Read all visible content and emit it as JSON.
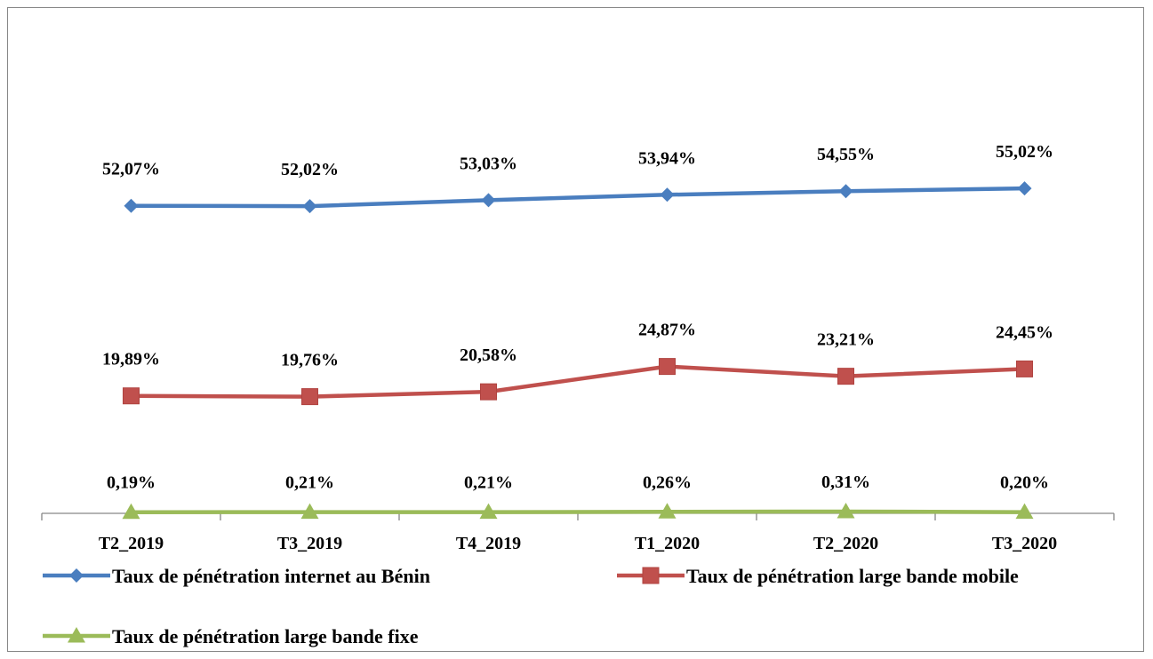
{
  "chart_data": {
    "type": "line",
    "categories": [
      "T2_2019",
      "T3_2019",
      "T4_2019",
      "T1_2020",
      "T2_2020",
      "T3_2020"
    ],
    "series": [
      {
        "name": "Taux de pénétration internet au Bénin",
        "values": [
          52.07,
          52.02,
          53.03,
          53.94,
          54.55,
          55.02
        ],
        "labels": [
          "52,07%",
          "52,02%",
          "53,03%",
          "53,94%",
          "54,55%",
          "55,02%"
        ],
        "color": "#4a7ebf",
        "marker": "diamond"
      },
      {
        "name": "Taux de pénétration large bande mobile",
        "values": [
          19.89,
          19.76,
          20.58,
          24.87,
          23.21,
          24.45
        ],
        "labels": [
          "19,89%",
          "19,76%",
          "20,58%",
          "24,87%",
          "23,21%",
          "24,45%"
        ],
        "color": "#c0504d",
        "marker": "square"
      },
      {
        "name": "Taux de pénétration large bande fixe",
        "values": [
          0.19,
          0.21,
          0.21,
          0.26,
          0.31,
          0.2
        ],
        "labels": [
          "0,19%",
          "0,21%",
          "0,21%",
          "0,26%",
          "0,31%",
          "0,20%"
        ],
        "color": "#9bbb59",
        "marker": "triangle"
      }
    ],
    "ylim": [
      0,
      65
    ],
    "grid": false,
    "legend_position": "bottom"
  }
}
